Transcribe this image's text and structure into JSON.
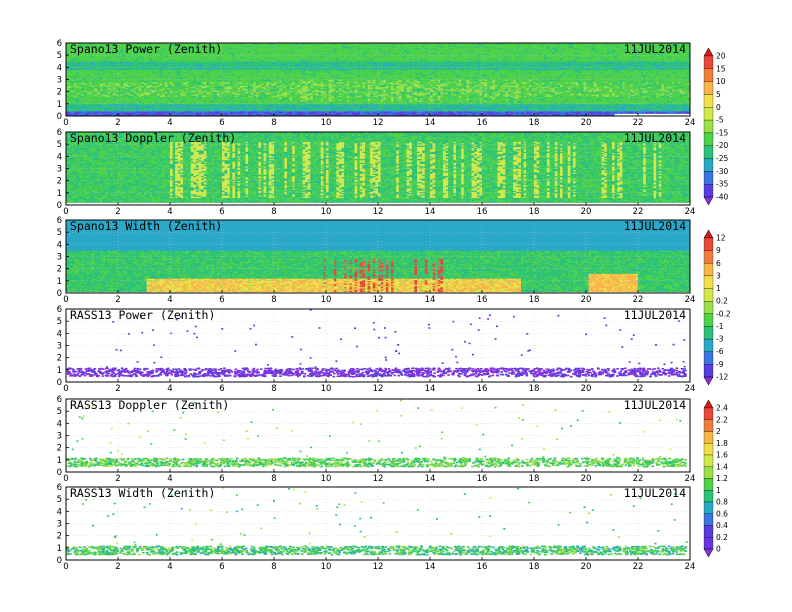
{
  "chart_data": [
    {
      "type": "heatmap",
      "title": "Spano13 Power (Zenith)",
      "date": "11JUL2014",
      "x_ticks": [
        "0",
        "2",
        "4",
        "6",
        "8",
        "10",
        "12",
        "14",
        "16",
        "18",
        "20",
        "22",
        "24"
      ],
      "y_ticks": [
        "0",
        "1",
        "2",
        "3",
        "4",
        "5",
        "6"
      ],
      "xlim": [
        0,
        24
      ],
      "ylim": [
        0,
        6
      ],
      "colorbar": "power",
      "field": {
        "kind": "power",
        "base_value": -20,
        "low_layer_value": -38,
        "top_height": 5.9,
        "bottom_gap_after_hour": 21
      }
    },
    {
      "type": "heatmap",
      "title": "Spano13 Doppler (Zenith)",
      "date": "11JUL2014",
      "x_ticks": [
        "0",
        "2",
        "4",
        "6",
        "8",
        "10",
        "12",
        "14",
        "16",
        "18",
        "20",
        "22",
        "24"
      ],
      "y_ticks": [
        "0",
        "1",
        "2",
        "3",
        "4",
        "5",
        "6"
      ],
      "xlim": [
        0,
        24
      ],
      "ylim": [
        0,
        6
      ],
      "colorbar": "power",
      "field": {
        "kind": "doppler",
        "base_value": -20,
        "streak_value": -5,
        "top_height": 5.9
      }
    },
    {
      "type": "heatmap",
      "title": "Spano13 Width (Zenith)",
      "date": "11JUL2014",
      "x_ticks": [
        "0",
        "2",
        "4",
        "6",
        "8",
        "10",
        "12",
        "14",
        "16",
        "18",
        "20",
        "22",
        "24"
      ],
      "y_ticks": [
        "0",
        "1",
        "2",
        "3",
        "4",
        "5",
        "6"
      ],
      "xlim": [
        0,
        24
      ],
      "ylim": [
        0,
        6
      ],
      "colorbar": "width",
      "field": {
        "kind": "width",
        "base_value": -2,
        "low_layer_value": 3,
        "top_height": 5.9
      }
    },
    {
      "type": "scatter",
      "title": "RASS13 Power (Zenith)",
      "date": "11JUL2014",
      "x_ticks": [
        "0",
        "2",
        "4",
        "6",
        "8",
        "10",
        "12",
        "14",
        "16",
        "18",
        "20",
        "22",
        "24"
      ],
      "y_ticks": [
        "0",
        "1",
        "2",
        "3",
        "4",
        "5",
        "6"
      ],
      "xlim": [
        0,
        24
      ],
      "ylim": [
        0,
        6
      ],
      "colorbar": "width",
      "field": {
        "kind": "rass",
        "band_center": 0.85,
        "band_value": -12,
        "scatter_value": -12
      }
    },
    {
      "type": "scatter",
      "title": "RASS13 Doppler (Zenith)",
      "date": "11JUL2014",
      "x_ticks": [
        "0",
        "2",
        "4",
        "6",
        "8",
        "10",
        "12",
        "14",
        "16",
        "18",
        "20",
        "22",
        "24"
      ],
      "y_ticks": [
        "0",
        "1",
        "2",
        "3",
        "4",
        "5",
        "6"
      ],
      "xlim": [
        0,
        24
      ],
      "ylim": [
        0,
        6
      ],
      "colorbar": "rass",
      "field": {
        "kind": "rass",
        "band_center": 0.85,
        "band_value": 1.1,
        "scatter_value": 1.2
      }
    },
    {
      "type": "scatter",
      "title": "RASS13 Width (Zenith)",
      "date": "11JUL2014",
      "x_ticks": [
        "0",
        "2",
        "4",
        "6",
        "8",
        "10",
        "12",
        "14",
        "16",
        "18",
        "20",
        "22",
        "24"
      ],
      "y_ticks": [
        "0",
        "1",
        "2",
        "3",
        "4",
        "5",
        "6"
      ],
      "xlim": [
        0,
        24
      ],
      "ylim": [
        0,
        6
      ],
      "colorbar": "rass",
      "field": {
        "kind": "rass",
        "band_center": 0.85,
        "band_value": 1.0,
        "scatter_value": 1.1
      }
    }
  ],
  "colorbars": {
    "power": {
      "labels": [
        "20",
        "15",
        "10",
        "5",
        "0",
        "-5",
        "-15",
        "-20",
        "-25",
        "-30",
        "-35",
        "-40"
      ],
      "values": [
        20,
        15,
        10,
        5,
        0,
        -5,
        -15,
        -20,
        -25,
        -30,
        -35,
        -40
      ],
      "colors": [
        "#d7191c",
        "#e8473a",
        "#f07c3c",
        "#f7b54a",
        "#f2e04a",
        "#d2e84a",
        "#9ae04a",
        "#4ed24a",
        "#2cc27a",
        "#2aa8c8",
        "#3a74e0",
        "#5a3ce0",
        "#8a2ee0"
      ]
    },
    "width": {
      "labels": [
        "12",
        "9",
        "6",
        "3",
        "1",
        "0.2",
        "-0.2",
        "-1",
        "-3",
        "-6",
        "-9",
        "-12"
      ],
      "values": [
        12,
        9,
        6,
        3,
        1,
        0.2,
        -0.2,
        -1,
        -3,
        -6,
        -9,
        -12
      ],
      "colors": [
        "#d7191c",
        "#e8473a",
        "#f07c3c",
        "#f7b54a",
        "#f2e04a",
        "#d2e84a",
        "#9ae04a",
        "#4ed24a",
        "#2cc27a",
        "#2aa8c8",
        "#3a74e0",
        "#5a3ce0",
        "#8a2ee0"
      ]
    },
    "rass": {
      "labels": [
        "2.4",
        "2.2",
        "2",
        "1.8",
        "1.6",
        "1.4",
        "1.2",
        "1",
        "0.8",
        "0.6",
        "0.4",
        "0.2",
        "0"
      ],
      "values": [
        2.4,
        2.2,
        2,
        1.8,
        1.6,
        1.4,
        1.2,
        1,
        0.8,
        0.6,
        0.4,
        0.2,
        0
      ],
      "colors": [
        "#d7191c",
        "#e8473a",
        "#f07c3c",
        "#f7b54a",
        "#f2e04a",
        "#d2e84a",
        "#9ae04a",
        "#4ed24a",
        "#2cc27a",
        "#2aa8c8",
        "#3a74e0",
        "#5a3ce0",
        "#6a34e0",
        "#8a2ee0"
      ]
    }
  },
  "colors": {
    "frame": "#000000",
    "grid": "#c8c8c8",
    "empty": "#ffffff"
  }
}
